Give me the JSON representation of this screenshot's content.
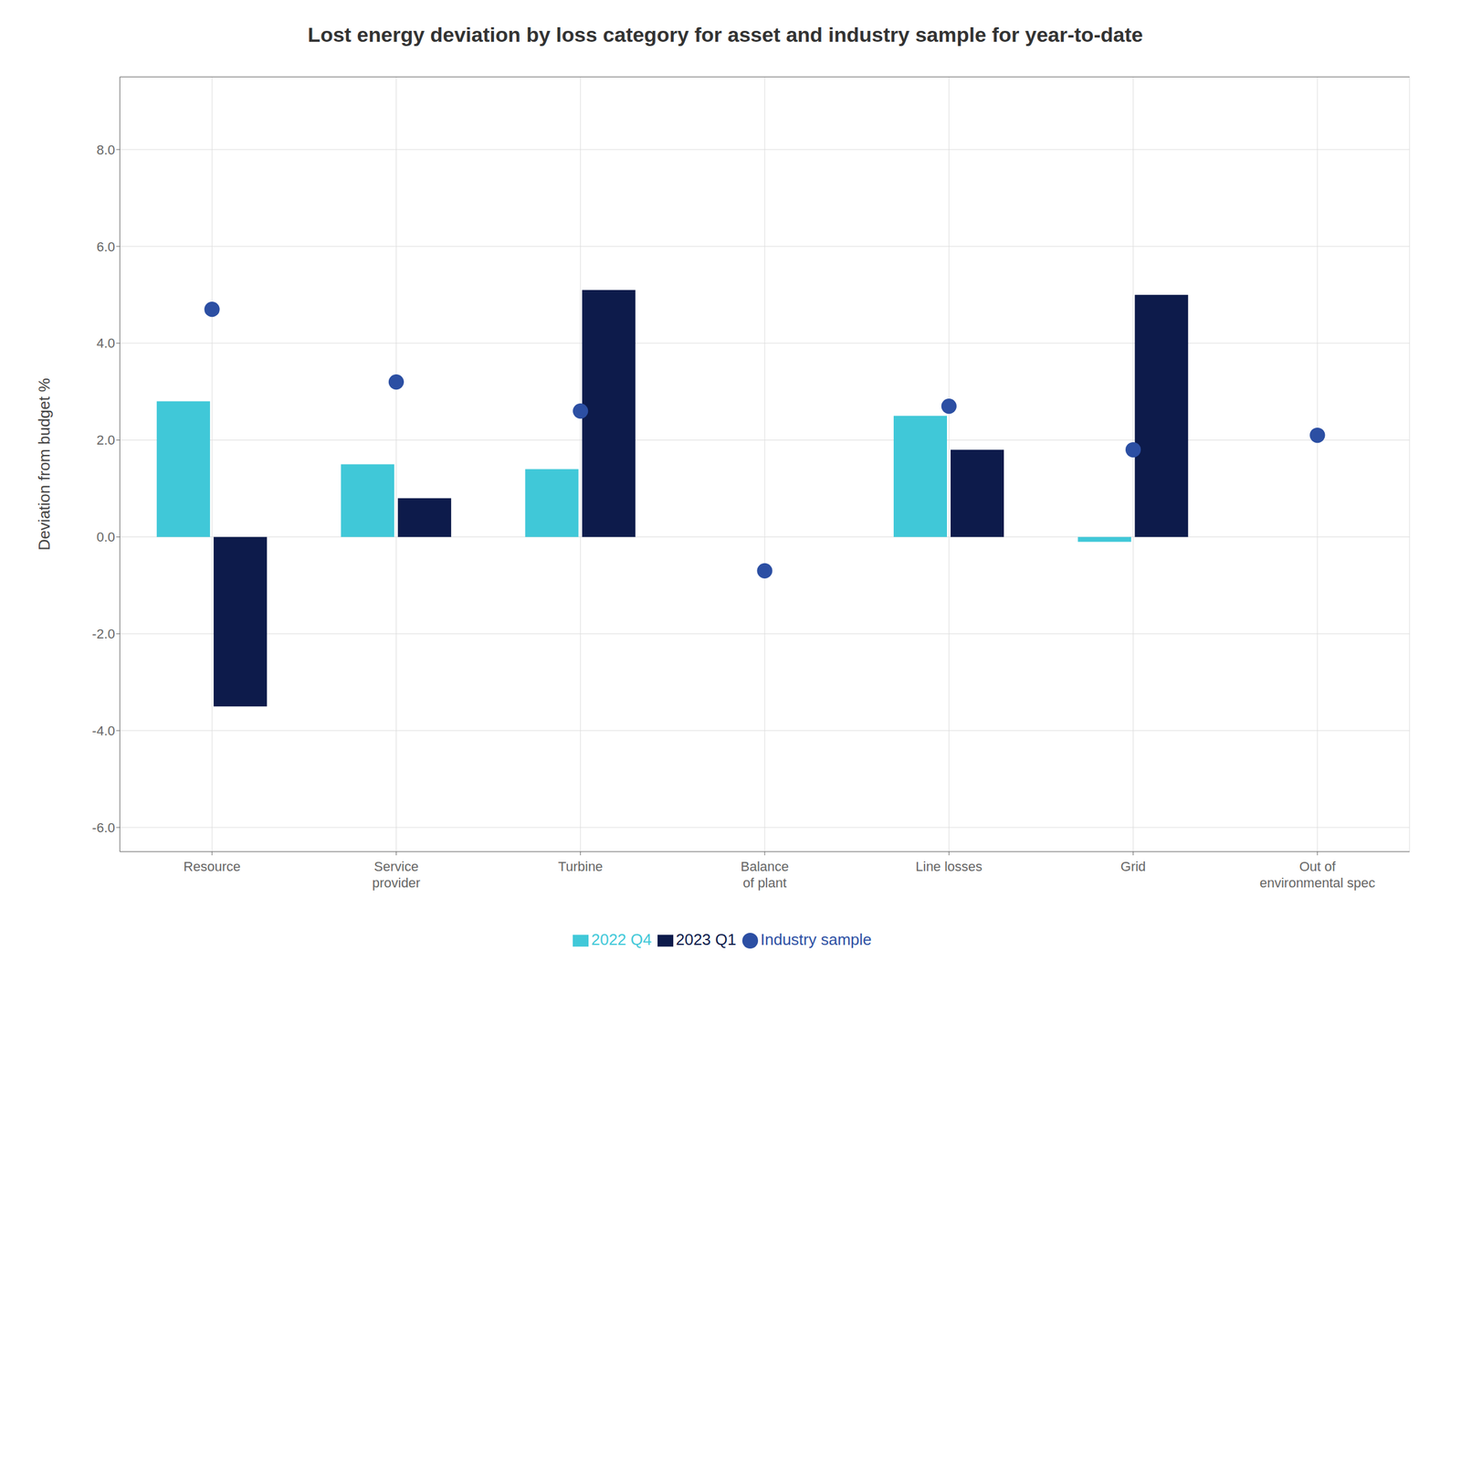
{
  "chart_data": {
    "type": "bar",
    "title": "Lost energy deviation by loss category for asset and industry sample for year-to-date",
    "ylabel": "Deviation from budget %",
    "categories": [
      "Resource",
      "Service\nprovider",
      "Turbine",
      "Balance\nof plant",
      "Line losses",
      "Grid",
      "Out of\nenvironmental spec"
    ],
    "series": [
      {
        "name": "2022 Q4",
        "color": "#40C8D8",
        "values": [
          2.8,
          1.5,
          1.4,
          0.0,
          2.5,
          -0.1,
          0.0
        ]
      },
      {
        "name": "2023 Q1",
        "color": "#0D1B4B",
        "values": [
          -3.5,
          0.8,
          5.1,
          0.0,
          1.8,
          5.0,
          0.0
        ]
      },
      {
        "name": "Industry sample",
        "type": "scatter",
        "marker": "circle",
        "color": "#2C4FA3",
        "values": [
          4.7,
          3.2,
          2.6,
          -0.7,
          2.7,
          1.8,
          2.1
        ]
      }
    ],
    "ylim": [
      -6.5,
      9.5
    ],
    "yticks": [
      {
        "value": -6.0,
        "label": "-6.0"
      },
      {
        "value": -4.0,
        "label": "-4.0"
      },
      {
        "value": -2.0,
        "label": "-2.0"
      },
      {
        "value": 0.0,
        "label": "0.0"
      },
      {
        "value": 2.0,
        "label": "2.0"
      },
      {
        "value": 4.0,
        "label": "4.0"
      },
      {
        "value": 6.0,
        "label": "6.0"
      },
      {
        "value": 8.0,
        "label": "8.0"
      }
    ],
    "grid": true,
    "legend": "bottom"
  }
}
